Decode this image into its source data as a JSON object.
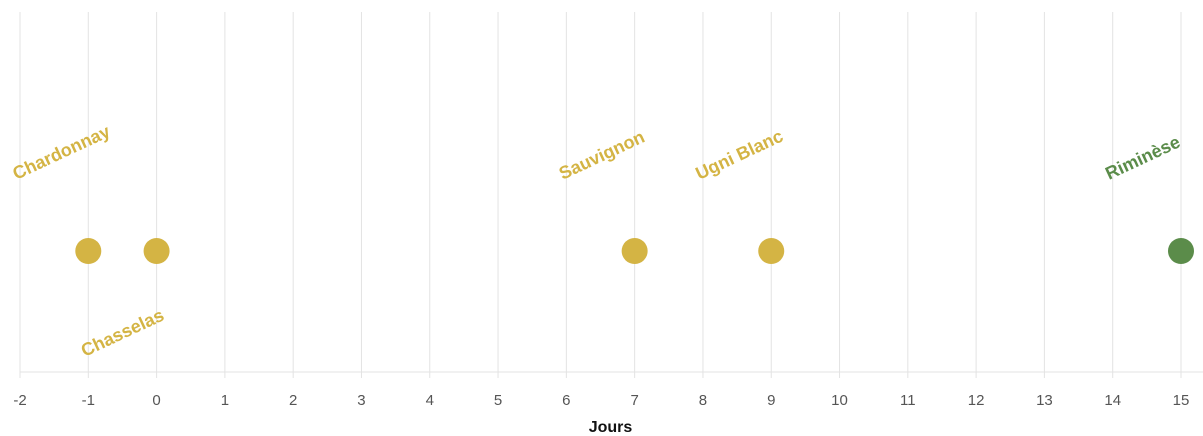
{
  "chart_data": {
    "type": "scatter",
    "xlabel": "Jours",
    "ylabel": "",
    "title": "",
    "xlim": [
      -2,
      15
    ],
    "xticks": [
      "-2",
      "-1",
      "0",
      "1",
      "2",
      "3",
      "4",
      "5",
      "6",
      "7",
      "8",
      "9",
      "10",
      "11",
      "12",
      "13",
      "14",
      "15"
    ],
    "grid": "vertical",
    "colors": {
      "gold": "#d4b444",
      "green": "#5b8c4a"
    },
    "points": [
      {
        "x": -1,
        "label": "Chardonnay",
        "color": "#d4b444",
        "label_position": "above"
      },
      {
        "x": 0,
        "label": "Chasselas",
        "color": "#d4b444",
        "label_position": "below"
      },
      {
        "x": 7,
        "label": "Sauvignon",
        "color": "#d4b444",
        "label_position": "above"
      },
      {
        "x": 9,
        "label": "Ugni Blanc",
        "color": "#d4b444",
        "label_position": "above"
      },
      {
        "x": 15,
        "label": "Riminèse",
        "color": "#5b8c4a",
        "label_position": "above"
      }
    ]
  }
}
